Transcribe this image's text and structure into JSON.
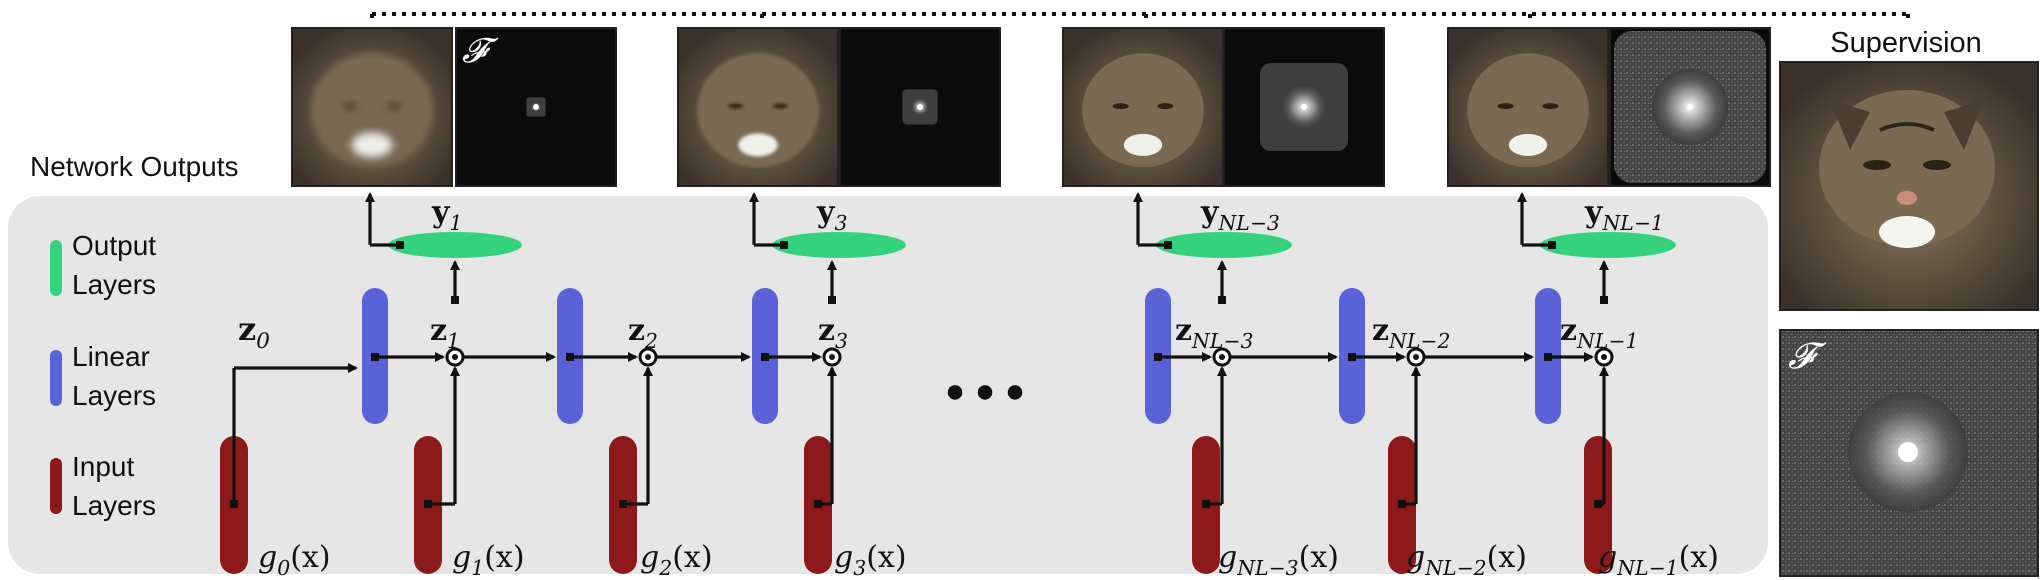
{
  "labels": {
    "network_outputs": "Network Outputs",
    "supervision": "Supervision",
    "fourier_symbol": "𝓕"
  },
  "legend": {
    "output": [
      "Output",
      "Layers"
    ],
    "linear": [
      "Linear",
      "Layers"
    ],
    "input": [
      "Input",
      "Layers"
    ]
  },
  "colors": {
    "output_layer": "#34d17f",
    "linear_layer": "#5b62d8",
    "input_layer": "#8c1a1a",
    "panel_bg": "#e6e6e6",
    "arrow": "#111111"
  },
  "ellipsis": "● ● ●",
  "stages": [
    {
      "y": [
        "y",
        "1"
      ],
      "z": [
        "z",
        "1"
      ],
      "g": [
        "g",
        "1",
        "(x)"
      ],
      "freq_size": 0.12
    },
    {
      "y": [
        "y",
        "3"
      ],
      "z": [
        "z",
        "3"
      ],
      "g": [
        "g",
        "3",
        "(x)"
      ],
      "freq_size": 0.22
    },
    {
      "y": [
        "y",
        "NL−3"
      ],
      "z": [
        "z",
        "NL−3"
      ],
      "g": [
        "g",
        "NL−3",
        "(x)"
      ],
      "freq_size": 0.55
    },
    {
      "y": [
        "y",
        "NL−1"
      ],
      "z": [
        "z",
        "NL−1"
      ],
      "g": [
        "g",
        "NL−1",
        "(x)"
      ],
      "freq_size": 0.95
    }
  ],
  "intermediate": [
    {
      "z": [
        "z",
        "2"
      ],
      "g": [
        "g",
        "2",
        "(x)"
      ]
    },
    {
      "z": [
        "z",
        "NL−2"
      ],
      "g": [
        "g",
        "NL−2",
        "(x)"
      ]
    }
  ],
  "z0": [
    "z",
    "0"
  ],
  "g0": [
    "g",
    "0",
    "(x)"
  ]
}
